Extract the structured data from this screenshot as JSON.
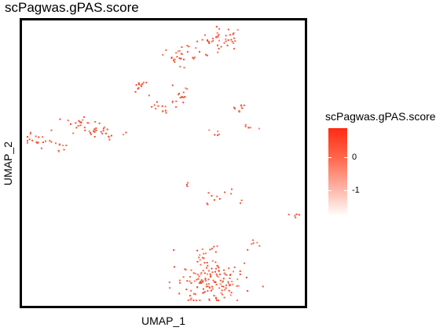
{
  "chart_data": {
    "type": "scatter",
    "title": "scPagwas.gPAS.score",
    "xlabel": "UMAP_1",
    "ylabel": "UMAP_2",
    "axis_ticks": "none",
    "grid": false,
    "point_color": "#f05a3c",
    "legend": {
      "title": "scPagwas.gPAS.score",
      "type": "colorbar",
      "placement": "right",
      "ticks": [
        0,
        -1
      ],
      "tick_labels": [
        "0",
        "-1"
      ],
      "range": [
        -1.8,
        0.9
      ],
      "colors": [
        "#ffffff",
        "#ff2a12"
      ]
    },
    "clusters": [
      {
        "x": 0.7,
        "y": 0.93,
        "spread": [
          0.04,
          0.02
        ],
        "n": 40
      },
      {
        "x": 0.56,
        "y": 0.87,
        "spread": [
          0.035,
          0.018
        ],
        "n": 30
      },
      {
        "x": 0.42,
        "y": 0.76,
        "spread": [
          0.015,
          0.012
        ],
        "n": 12
      },
      {
        "x": 0.56,
        "y": 0.73,
        "spread": [
          0.018,
          0.015
        ],
        "n": 15
      },
      {
        "x": 0.49,
        "y": 0.69,
        "spread": [
          0.018,
          0.012
        ],
        "n": 12
      },
      {
        "x": 0.77,
        "y": 0.69,
        "spread": [
          0.02,
          0.012
        ],
        "n": 10
      },
      {
        "x": 0.79,
        "y": 0.63,
        "spread": [
          0.015,
          0.01
        ],
        "n": 5
      },
      {
        "x": 0.68,
        "y": 0.61,
        "spread": [
          0.012,
          0.01
        ],
        "n": 5
      },
      {
        "x": 0.21,
        "y": 0.64,
        "spread": [
          0.02,
          0.01
        ],
        "n": 15
      },
      {
        "x": 0.28,
        "y": 0.61,
        "spread": [
          0.04,
          0.012
        ],
        "n": 28
      },
      {
        "x": 0.07,
        "y": 0.58,
        "spread": [
          0.04,
          0.012
        ],
        "n": 22
      },
      {
        "x": 0.15,
        "y": 0.55,
        "spread": [
          0.012,
          0.012
        ],
        "n": 6
      },
      {
        "x": 0.58,
        "y": 0.43,
        "spread": [
          0.01,
          0.01
        ],
        "n": 3
      },
      {
        "x": 0.66,
        "y": 0.37,
        "spread": [
          0.015,
          0.018
        ],
        "n": 6
      },
      {
        "x": 0.73,
        "y": 0.4,
        "spread": [
          0.01,
          0.015
        ],
        "n": 4
      },
      {
        "x": 0.77,
        "y": 0.38,
        "spread": [
          0.008,
          0.008
        ],
        "n": 2
      },
      {
        "x": 0.96,
        "y": 0.32,
        "spread": [
          0.012,
          0.006
        ],
        "n": 6
      },
      {
        "x": 0.65,
        "y": 0.09,
        "spread": [
          0.06,
          0.04
        ],
        "n": 150
      },
      {
        "x": 0.65,
        "y": 0.18,
        "spread": [
          0.04,
          0.02
        ],
        "n": 15
      },
      {
        "x": 0.81,
        "y": 0.22,
        "spread": [
          0.015,
          0.01
        ],
        "n": 6
      }
    ]
  }
}
